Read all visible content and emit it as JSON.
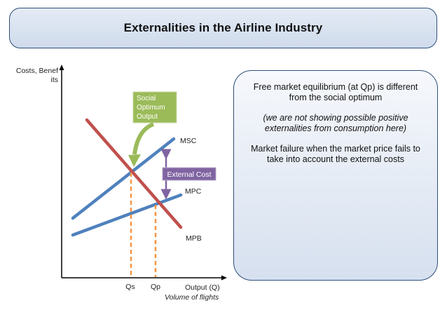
{
  "header": {
    "title": "Externalities in the Airline Industry"
  },
  "info_box": {
    "line1": "Free market equilibrium (at Qp) is different from the social optimum",
    "line2": "(we are not showing possible positive externalities from consumption here)",
    "line3": "Market failure when the market price fails to take into account the external costs"
  },
  "diagram": {
    "y_axis_label_1": "Costs, Benef",
    "y_axis_label_2": "its",
    "x_axis_label": "Output (Q)",
    "x_axis_sublabel": "Volume of flights",
    "qs_label": "Qs",
    "qp_label": "Qp",
    "msc_label": "MSC",
    "mpc_label": "MPC",
    "mpb_label": "MPB",
    "external_cost_label": "External Cost",
    "social_optimum_1": "Social",
    "social_optimum_2": "Optimum",
    "social_optimum_3": "Output"
  },
  "colors": {
    "msc_line": "#4f81bd",
    "mpc_line": "#4f81bd",
    "mpb_line": "#c0504d",
    "dashed_lines": "#f79646",
    "external_cost_fill": "#8064a2",
    "social_optimum_fill": "#9bbb59"
  }
}
